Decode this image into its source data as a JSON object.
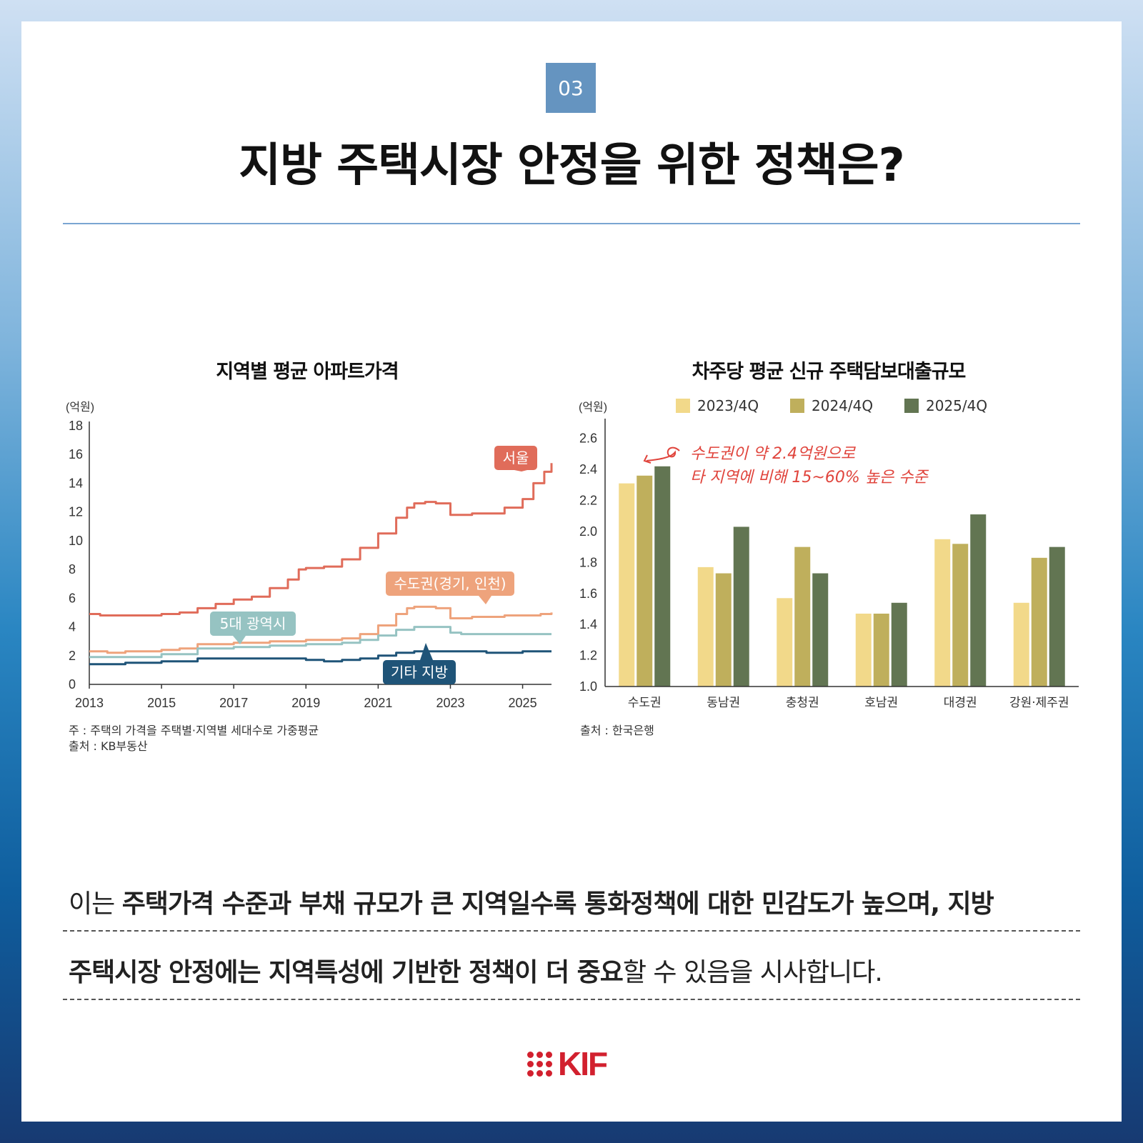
{
  "header": {
    "section_number": "03",
    "title": "지방 주택시장 안정을 위한 정책은?"
  },
  "chart_data": [
    {
      "type": "line",
      "title": "지역별 평균 아파트가격",
      "ylabel": "(억원)",
      "ylim": [
        0,
        18
      ],
      "yticks": [
        0,
        2,
        4,
        6,
        8,
        10,
        12,
        14,
        16,
        18
      ],
      "xlim": [
        2013,
        2025.8
      ],
      "xticks": [
        "2013",
        "2015",
        "2017",
        "2019",
        "2021",
        "2023",
        "2025"
      ],
      "series": [
        {
          "name": "서울",
          "color": "#e06c5a",
          "points": [
            [
              2013.0,
              4.9
            ],
            [
              2013.3,
              4.8
            ],
            [
              2014.0,
              4.8
            ],
            [
              2014.5,
              4.8
            ],
            [
              2015.0,
              4.9
            ],
            [
              2015.5,
              5.0
            ],
            [
              2016.0,
              5.3
            ],
            [
              2016.5,
              5.6
            ],
            [
              2017.0,
              5.9
            ],
            [
              2017.5,
              6.1
            ],
            [
              2018.0,
              6.7
            ],
            [
              2018.5,
              7.3
            ],
            [
              2018.8,
              8.0
            ],
            [
              2019.0,
              8.1
            ],
            [
              2019.5,
              8.2
            ],
            [
              2020.0,
              8.7
            ],
            [
              2020.5,
              9.5
            ],
            [
              2021.0,
              10.5
            ],
            [
              2021.5,
              11.6
            ],
            [
              2021.8,
              12.3
            ],
            [
              2022.0,
              12.6
            ],
            [
              2022.3,
              12.7
            ],
            [
              2022.6,
              12.6
            ],
            [
              2023.0,
              11.8
            ],
            [
              2023.3,
              11.8
            ],
            [
              2023.6,
              11.9
            ],
            [
              2024.0,
              11.9
            ],
            [
              2024.5,
              12.3
            ],
            [
              2025.0,
              12.9
            ],
            [
              2025.3,
              14.0
            ],
            [
              2025.6,
              14.8
            ],
            [
              2025.8,
              15.4
            ]
          ]
        },
        {
          "name": "수도권(경기, 인천)",
          "color": "#eea37c",
          "points": [
            [
              2013.0,
              2.3
            ],
            [
              2013.5,
              2.2
            ],
            [
              2014.0,
              2.3
            ],
            [
              2015.0,
              2.4
            ],
            [
              2015.5,
              2.5
            ],
            [
              2016.0,
              2.8
            ],
            [
              2017.0,
              2.9
            ],
            [
              2017.5,
              2.9
            ],
            [
              2018.0,
              3.0
            ],
            [
              2019.0,
              3.1
            ],
            [
              2020.0,
              3.2
            ],
            [
              2020.5,
              3.5
            ],
            [
              2021.0,
              4.1
            ],
            [
              2021.5,
              4.9
            ],
            [
              2021.8,
              5.3
            ],
            [
              2022.0,
              5.4
            ],
            [
              2022.3,
              5.4
            ],
            [
              2022.6,
              5.3
            ],
            [
              2023.0,
              4.6
            ],
            [
              2023.3,
              4.6
            ],
            [
              2023.6,
              4.7
            ],
            [
              2024.0,
              4.7
            ],
            [
              2024.5,
              4.8
            ],
            [
              2025.0,
              4.8
            ],
            [
              2025.5,
              4.9
            ],
            [
              2025.8,
              5.0
            ]
          ]
        },
        {
          "name": "5대 광역시",
          "color": "#96c3c2",
          "points": [
            [
              2013.0,
              1.9
            ],
            [
              2014.0,
              1.9
            ],
            [
              2015.0,
              2.1
            ],
            [
              2016.0,
              2.5
            ],
            [
              2017.0,
              2.6
            ],
            [
              2018.0,
              2.7
            ],
            [
              2019.0,
              2.8
            ],
            [
              2020.0,
              2.9
            ],
            [
              2020.5,
              3.1
            ],
            [
              2021.0,
              3.4
            ],
            [
              2021.5,
              3.8
            ],
            [
              2022.0,
              4.0
            ],
            [
              2022.5,
              4.0
            ],
            [
              2023.0,
              3.6
            ],
            [
              2023.3,
              3.5
            ],
            [
              2024.0,
              3.5
            ],
            [
              2024.5,
              3.5
            ],
            [
              2025.0,
              3.5
            ],
            [
              2025.8,
              3.5
            ]
          ]
        },
        {
          "name": "기타 지방",
          "color": "#1f5478",
          "points": [
            [
              2013.0,
              1.4
            ],
            [
              2014.0,
              1.5
            ],
            [
              2015.0,
              1.6
            ],
            [
              2016.0,
              1.8
            ],
            [
              2017.0,
              1.8
            ],
            [
              2018.0,
              1.8
            ],
            [
              2019.0,
              1.7
            ],
            [
              2019.5,
              1.6
            ],
            [
              2020.0,
              1.7
            ],
            [
              2020.5,
              1.8
            ],
            [
              2021.0,
              2.0
            ],
            [
              2021.5,
              2.2
            ],
            [
              2022.0,
              2.3
            ],
            [
              2022.5,
              2.3
            ],
            [
              2023.0,
              2.3
            ],
            [
              2024.0,
              2.2
            ],
            [
              2025.0,
              2.3
            ],
            [
              2025.8,
              2.3
            ]
          ]
        }
      ],
      "notes": [
        "주 : 주택의 가격을 주택별·지역별 세대수로 가중평균",
        "출처 : KB부동산"
      ]
    },
    {
      "type": "bar",
      "title": "차주당 평균 신규 주택담보대출규모",
      "ylabel": "(억원)",
      "ylim": [
        1.0,
        2.7
      ],
      "yticks": [
        "1.0",
        "1.2",
        "1.4",
        "1.6",
        "1.8",
        "2.0",
        "2.2",
        "2.4",
        "2.6"
      ],
      "categories": [
        "수도권",
        "동남권",
        "충청권",
        "호남권",
        "대경권",
        "강원·제주권"
      ],
      "series": [
        {
          "name": "2023/4Q",
          "color": "#f2d98a",
          "values": [
            2.31,
            1.77,
            1.57,
            1.47,
            1.95,
            1.54
          ]
        },
        {
          "name": "2024/4Q",
          "color": "#bfaf5c",
          "values": [
            2.36,
            1.73,
            1.9,
            1.47,
            1.92,
            1.83
          ]
        },
        {
          "name": "2025/4Q",
          "color": "#627552",
          "values": [
            2.42,
            2.03,
            1.73,
            1.54,
            2.11,
            1.9
          ]
        }
      ],
      "annotation": [
        "수도권이 약 2.4억원으로",
        "타 지역에 비해 15~60% 높은 수준"
      ],
      "notes": [
        "출처 : 한국은행"
      ]
    }
  ],
  "body": {
    "line1": {
      "pre": "이는 ",
      "bold": "주택가격 수준과 부채 규모가 큰 지역일수록 통화정책에 대한 민감도가 높으며, 지방"
    },
    "line2": {
      "bold": "주택시장 안정에는 지역특성에 기반한 정책이 더 중요",
      "post": "할 수 있음을 시사합니다."
    }
  },
  "logo": {
    "text": "KIF",
    "color": "#d2202e"
  }
}
